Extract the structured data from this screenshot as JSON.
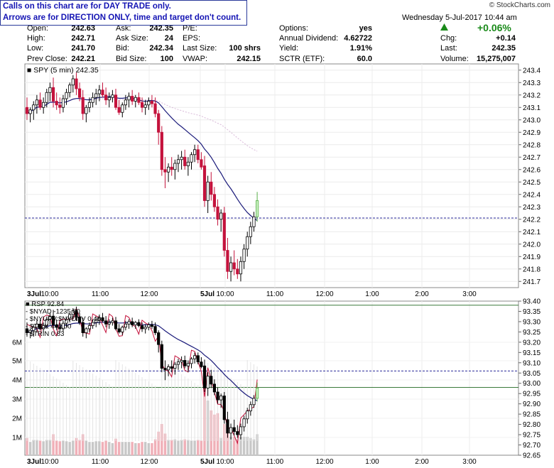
{
  "notice": {
    "line1": "Calls on this chart are for DAY TRADE only.",
    "line2": "Arrows are for DIRECTION ONLY, time and target don't count."
  },
  "brand": "© StockCharts.com",
  "header": {
    "date": "Wednesday   5-Jul-2017  10:44 am",
    "change_pct": "+0.06%",
    "up_arrow_icon": "triangle-up",
    "up_color": "#1a8a1a"
  },
  "quote": {
    "col1": [
      {
        "label": "Open:",
        "value": "242.63"
      },
      {
        "label": "High:",
        "value": "242.71"
      },
      {
        "label": "Low:",
        "value": "241.70"
      },
      {
        "label": "Prev Close:",
        "value": "242.21"
      }
    ],
    "col2": [
      {
        "label": "Ask:",
        "value": "242.35"
      },
      {
        "label": "Ask Size:",
        "value": "24"
      },
      {
        "label": "Bid:",
        "value": "242.34"
      },
      {
        "label": "Bid Size:",
        "value": "100"
      }
    ],
    "col3": [
      {
        "label": "P/E:",
        "value": ""
      },
      {
        "label": "EPS:",
        "value": ""
      },
      {
        "label": "Last Size:",
        "value": "100 shrs"
      },
      {
        "label": "VWAP:",
        "value": "242.15"
      }
    ],
    "col4": [
      {
        "label": "Options:",
        "value": "yes"
      },
      {
        "label": "Annual Dividend:",
        "value": "4.62722"
      },
      {
        "label": "Yield:",
        "value": "1.91%"
      },
      {
        "label": "SCTR (ETF):",
        "value": "60.0"
      }
    ],
    "col5": [
      {
        "label": "Chg:",
        "value": "+0.14"
      },
      {
        "label": "Last:",
        "value": "242.35"
      },
      {
        "label": "Volume:",
        "value": "15,275,007"
      }
    ]
  },
  "chart_data": [
    {
      "type": "candlestick",
      "legend": "SPY (5 min) 242.35",
      "ylim": [
        241.65,
        243.45
      ],
      "yticks": [
        "243.4",
        "243.3",
        "243.2",
        "243.1",
        "243.0",
        "242.9",
        "242.8",
        "242.7",
        "242.6",
        "242.5",
        "242.4",
        "242.3",
        "242.2",
        "242.1",
        "242.0",
        "241.9",
        "241.8",
        "241.7"
      ],
      "xticks": [
        "3Jul",
        "10:00",
        "11:00",
        "12:00",
        "5Jul",
        "10:00",
        "11:00",
        "12:00",
        "1:00",
        "2:00",
        "3:00"
      ],
      "reference_line": 242.21,
      "candles": [
        [
          243.1,
          243.18,
          243.0,
          243.05
        ],
        [
          243.05,
          243.1,
          242.98,
          243.08
        ],
        [
          243.08,
          243.15,
          243.0,
          243.12
        ],
        [
          243.12,
          243.2,
          243.05,
          243.16
        ],
        [
          243.16,
          243.22,
          243.08,
          243.1
        ],
        [
          243.1,
          243.18,
          243.05,
          243.14
        ],
        [
          243.14,
          243.25,
          243.1,
          243.22
        ],
        [
          243.22,
          243.3,
          243.15,
          243.26
        ],
        [
          243.26,
          243.34,
          243.1,
          243.15
        ],
        [
          243.15,
          243.22,
          243.08,
          243.12
        ],
        [
          243.12,
          243.18,
          243.05,
          243.1
        ],
        [
          243.1,
          243.2,
          243.06,
          243.17
        ],
        [
          243.17,
          243.25,
          243.12,
          243.22
        ],
        [
          243.22,
          243.3,
          243.18,
          243.28
        ],
        [
          243.28,
          243.36,
          243.22,
          243.33
        ],
        [
          243.33,
          243.38,
          243.2,
          243.25
        ],
        [
          243.25,
          243.3,
          243.15,
          243.18
        ],
        [
          243.18,
          243.24,
          243.0,
          243.05
        ],
        [
          243.05,
          243.12,
          242.98,
          243.1
        ],
        [
          243.1,
          243.18,
          243.06,
          243.14
        ],
        [
          243.14,
          243.22,
          243.1,
          243.18
        ],
        [
          243.18,
          243.25,
          243.12,
          243.21
        ],
        [
          243.21,
          243.28,
          243.15,
          243.24
        ],
        [
          243.24,
          243.3,
          243.18,
          243.2
        ],
        [
          243.2,
          243.26,
          243.12,
          243.16
        ],
        [
          243.16,
          243.22,
          243.1,
          243.18
        ],
        [
          243.18,
          243.24,
          243.14,
          243.2
        ],
        [
          243.2,
          243.25,
          243.08,
          243.1
        ],
        [
          243.1,
          243.16,
          243.04,
          243.06
        ],
        [
          243.06,
          243.14,
          243.02,
          243.12
        ],
        [
          243.12,
          243.2,
          243.08,
          243.16
        ],
        [
          243.16,
          243.22,
          243.1,
          243.19
        ],
        [
          243.19,
          243.24,
          243.12,
          243.15
        ],
        [
          243.15,
          243.2,
          243.1,
          243.18
        ],
        [
          243.18,
          243.22,
          243.12,
          243.14
        ],
        [
          243.14,
          243.18,
          243.06,
          243.1
        ],
        [
          243.1,
          243.16,
          243.04,
          243.12
        ],
        [
          243.12,
          243.18,
          243.08,
          243.15
        ],
        [
          243.15,
          243.2,
          243.1,
          243.13
        ],
        [
          243.13,
          243.18,
          243.02,
          243.05
        ],
        [
          243.05,
          243.08,
          242.8,
          242.9
        ],
        [
          242.9,
          242.95,
          242.55,
          242.6
        ],
        [
          242.6,
          242.7,
          242.45,
          242.58
        ],
        [
          242.58,
          242.65,
          242.5,
          242.62
        ],
        [
          242.62,
          242.7,
          242.55,
          242.6
        ],
        [
          242.6,
          242.68,
          242.52,
          242.65
        ],
        [
          242.65,
          242.72,
          242.58,
          242.68
        ],
        [
          242.68,
          242.75,
          242.6,
          242.7
        ],
        [
          242.7,
          242.76,
          242.6,
          242.63
        ],
        [
          242.63,
          242.7,
          242.55,
          242.66
        ],
        [
          242.66,
          242.74,
          242.6,
          242.72
        ],
        [
          242.72,
          242.8,
          242.66,
          242.76
        ],
        [
          242.76,
          242.8,
          242.65,
          242.68
        ],
        [
          242.68,
          242.74,
          242.6,
          242.62
        ],
        [
          242.63,
          242.71,
          242.3,
          242.35
        ],
        [
          242.35,
          242.55,
          242.25,
          242.5
        ],
        [
          242.5,
          242.58,
          242.35,
          242.4
        ],
        [
          242.4,
          242.46,
          242.26,
          242.3
        ],
        [
          242.3,
          242.36,
          242.15,
          242.2
        ],
        [
          242.2,
          242.28,
          242.1,
          242.25
        ],
        [
          242.25,
          242.3,
          241.9,
          241.95
        ],
        [
          241.95,
          242.05,
          241.72,
          241.78
        ],
        [
          241.78,
          241.9,
          241.7,
          241.85
        ],
        [
          241.85,
          241.95,
          241.75,
          241.8
        ],
        [
          241.8,
          241.88,
          241.72,
          241.76
        ],
        [
          241.76,
          241.9,
          241.7,
          241.86
        ],
        [
          241.86,
          242.0,
          241.8,
          241.96
        ],
        [
          241.96,
          242.1,
          241.9,
          242.06
        ],
        [
          242.06,
          242.18,
          242.0,
          242.14
        ],
        [
          242.14,
          242.26,
          242.1,
          242.22
        ],
        [
          242.22,
          242.42,
          242.18,
          242.35
        ]
      ]
    },
    {
      "type": "volume",
      "legend": [
        "RSP 92.84",
        "$NYAD -1235.00",
        "$NYUPV:$NYDNV 0.46",
        "$TICK 443.00",
        "$TRIN 0.83"
      ],
      "ylim_right": [
        92.65,
        93.4
      ],
      "yticks_right": [
        "93.40",
        "93.35",
        "93.30",
        "93.25",
        "93.20",
        "93.15",
        "93.10",
        "93.05",
        "93.00",
        "92.95",
        "92.90",
        "92.85",
        "92.80",
        "92.75",
        "92.70",
        "92.65"
      ],
      "yticks_left": [
        "6M",
        "5M",
        "4M",
        "3M",
        "2M",
        "1M"
      ],
      "xticks": [
        "3Jul",
        "10:00",
        "11:00",
        "12:00",
        "5Jul",
        "10:00",
        "11:00",
        "12:00",
        "1:00",
        "2:00",
        "3:00"
      ],
      "reference_lines": [
        93.38,
        93.06,
        92.98
      ]
    }
  ]
}
